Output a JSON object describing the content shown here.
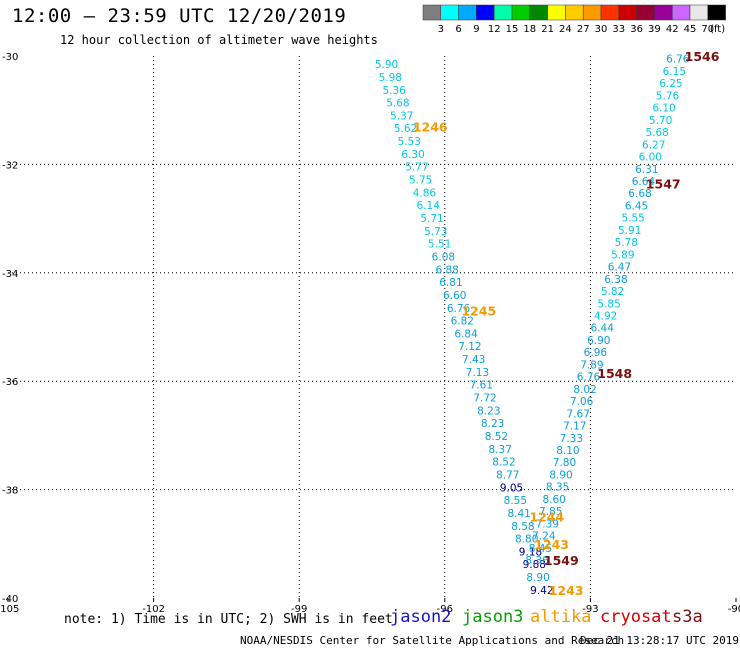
{
  "header": {
    "title": "12:00 – 23:59 UTC 12/20/2019",
    "subtitle": "12 hour collection of altimeter wave heights"
  },
  "colorbar": {
    "labels": [
      "3",
      "6",
      "9",
      "12",
      "15",
      "18",
      "21",
      "24",
      "27",
      "30",
      "33",
      "36",
      "39",
      "42",
      "45",
      "70",
      "(ft)"
    ],
    "colors": [
      "#7f7f7f",
      "#00ffff",
      "#00aaff",
      "#0000ff",
      "#00ffaa",
      "#00cc00",
      "#008800",
      "#ffff00",
      "#ffcc00",
      "#ff9900",
      "#ff3300",
      "#cc0000",
      "#990033",
      "#990099",
      "#cc66ff",
      "#e8e8e8",
      "#000000"
    ]
  },
  "footer": {
    "note": "note: 1) Time is in UTC; 2) SWH is in feet",
    "credit": "NOAA/NESDIS Center for Satellite Applications and Research",
    "timestamp": "Dec 21 13:28:17 UTC 2019",
    "satellites": {
      "jason2": "jason2",
      "jason3": "jason3",
      "altika": "altika",
      "cryosat": "cryosat",
      "s3a": "s3a"
    },
    "satellite_colors": {
      "jason2": "#1616c8",
      "jason3": "#0a9a0a",
      "altika": "#f59a00",
      "cryosat": "#d40000",
      "s3a": "#7a1010"
    }
  },
  "chart_data": {
    "type": "scatter",
    "xlim": [
      -105,
      -90
    ],
    "ylim": [
      -40,
      -30
    ],
    "x_ticks": [
      "-105",
      "-102",
      "-99",
      "-96",
      "-93",
      "-90"
    ],
    "y_ticks": [
      "-30",
      "-32",
      "-34",
      "-36",
      "-38",
      "-40"
    ],
    "grid": true,
    "point_colors": {
      "cyan": "#00c8e6",
      "blue": "#0aa0dc",
      "navy": "#00008c"
    },
    "series": [
      {
        "points": [
          [
            "5.90",
            "cyan"
          ],
          [
            "5.98",
            "cyan"
          ],
          [
            "5.36",
            "cyan"
          ],
          [
            "5.68",
            "cyan"
          ],
          [
            "5.37",
            "cyan"
          ],
          [
            "5.62",
            "cyan"
          ],
          [
            "5.53",
            "cyan"
          ],
          [
            "6.30",
            "cyan"
          ],
          [
            "5.77",
            "cyan"
          ],
          [
            "5.75",
            "cyan"
          ],
          [
            "4.86",
            "cyan"
          ],
          [
            "6.14",
            "cyan"
          ],
          [
            "5.71",
            "cyan"
          ],
          [
            "5.73",
            "cyan"
          ],
          [
            "5.51",
            "cyan"
          ],
          [
            "6.08",
            "blue"
          ],
          [
            "6.88",
            "blue"
          ],
          [
            "6.81",
            "blue"
          ],
          [
            "6.60",
            "blue"
          ],
          [
            "6.76",
            "blue"
          ],
          [
            "6.82",
            "blue"
          ],
          [
            "6.84",
            "blue"
          ],
          [
            "7.12",
            "blue"
          ],
          [
            "7.43",
            "blue"
          ],
          [
            "7.13",
            "blue"
          ],
          [
            "7.61",
            "blue"
          ],
          [
            "7.72",
            "blue"
          ],
          [
            "8.23",
            "blue"
          ],
          [
            "8.23",
            "blue"
          ],
          [
            "8.52",
            "blue"
          ],
          [
            "8.37",
            "blue"
          ],
          [
            "8.52",
            "blue"
          ],
          [
            "8.77",
            "blue"
          ],
          [
            "9.05",
            "navy"
          ],
          [
            "8.55",
            "blue"
          ],
          [
            "8.41",
            "blue"
          ],
          [
            "8.58",
            "blue"
          ],
          [
            "8.80",
            "blue"
          ],
          [
            "9.18",
            "navy"
          ],
          [
            "9.88",
            "navy"
          ],
          [
            "8.90",
            "blue"
          ],
          [
            "9.42",
            "navy"
          ]
        ]
      },
      {
        "points": [
          [
            "6.76",
            "blue"
          ],
          [
            "6.15",
            "cyan"
          ],
          [
            "6.25",
            "cyan"
          ],
          [
            "5.76",
            "cyan"
          ],
          [
            "6.10",
            "cyan"
          ],
          [
            "5.70",
            "cyan"
          ],
          [
            "5.68",
            "cyan"
          ],
          [
            "6.27",
            "cyan"
          ],
          [
            "6.00",
            "cyan"
          ],
          [
            "6.31",
            "blue"
          ],
          [
            "6.64",
            "blue"
          ],
          [
            "6.68",
            "blue"
          ],
          [
            "6.45",
            "blue"
          ],
          [
            "5.55",
            "cyan"
          ],
          [
            "5.91",
            "cyan"
          ],
          [
            "5.78",
            "cyan"
          ],
          [
            "5.89",
            "cyan"
          ],
          [
            "6.47",
            "blue"
          ],
          [
            "6.38",
            "blue"
          ],
          [
            "5.82",
            "cyan"
          ],
          [
            "5.85",
            "cyan"
          ],
          [
            "4.92",
            "cyan"
          ],
          [
            "6.44",
            "blue"
          ],
          [
            "6.90",
            "blue"
          ],
          [
            "6.96",
            "blue"
          ],
          [
            "7.89",
            "blue"
          ],
          [
            "6.76",
            "blue"
          ],
          [
            "8.02",
            "blue"
          ],
          [
            "7.06",
            "blue"
          ],
          [
            "7.67",
            "blue"
          ],
          [
            "7.17",
            "blue"
          ],
          [
            "7.33",
            "blue"
          ],
          [
            "8.10",
            "blue"
          ],
          [
            "7.80",
            "blue"
          ],
          [
            "8.90",
            "blue"
          ],
          [
            "8.35",
            "blue"
          ],
          [
            "8.60",
            "blue"
          ],
          [
            "7.85",
            "blue"
          ],
          [
            "7.39",
            "blue"
          ],
          [
            "7.24",
            "blue"
          ],
          [
            "8.45",
            "blue"
          ],
          [
            "8.36",
            "blue"
          ]
        ]
      }
    ],
    "annotations": [
      {
        "text": "1246",
        "lon": -96.3,
        "lat": -31.3,
        "color": "#f59a00"
      },
      {
        "text": "1245",
        "lon": -95.3,
        "lat": -34.7,
        "color": "#f59a00"
      },
      {
        "text": "1244",
        "lon": -93.9,
        "lat": -38.5,
        "color": "#f59a00"
      },
      {
        "text": "1243",
        "lon": -93.8,
        "lat": -39.0,
        "color": "#f59a00"
      },
      {
        "text": "1243",
        "lon": -93.5,
        "lat": -39.85,
        "color": "#f59a00"
      },
      {
        "text": "1546",
        "lon": -90.7,
        "lat": -30.0,
        "color": "#7a1010"
      },
      {
        "text": "1547",
        "lon": -91.5,
        "lat": -32.35,
        "color": "#7a1010"
      },
      {
        "text": "1548",
        "lon": -92.5,
        "lat": -35.85,
        "color": "#7a1010"
      },
      {
        "text": "1549",
        "lon": -93.6,
        "lat": -39.3,
        "color": "#7a1010"
      }
    ]
  }
}
